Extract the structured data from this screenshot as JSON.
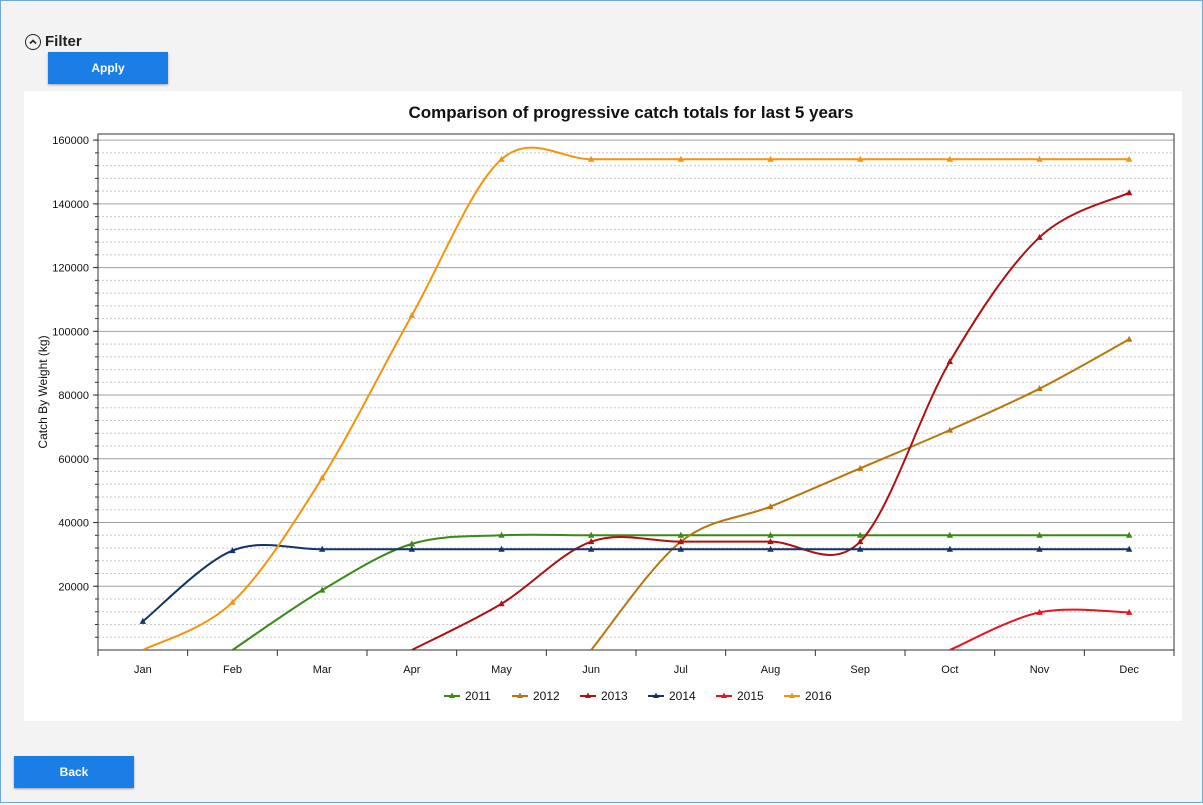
{
  "filter": {
    "label": "Filter",
    "icon": "chevron-up-circle-icon"
  },
  "buttons": {
    "apply": "Apply",
    "back": "Back"
  },
  "colors": {
    "button": "#1a7ee6",
    "window_border": "#6fa8dc"
  },
  "chart_data": {
    "type": "line",
    "title": "Comparison of progressive catch totals for last 5 years",
    "xlabel": "",
    "ylabel": "Catch By Weight (kg)",
    "categories": [
      "Jan",
      "Feb",
      "Mar",
      "Apr",
      "May",
      "Jun",
      "Jul",
      "Aug",
      "Sep",
      "Oct",
      "Nov",
      "Dec"
    ],
    "ylim": [
      0,
      160000
    ],
    "yticks": [
      20000,
      40000,
      60000,
      80000,
      100000,
      120000,
      140000,
      160000
    ],
    "grid": true,
    "legend_position": "bottom-center",
    "marker": "triangle",
    "series": [
      {
        "name": "2011",
        "color": "#3a8a14",
        "values": [
          null,
          0,
          18800,
          33300,
          36000,
          36000,
          36000,
          36000,
          36000,
          36000,
          36000,
          36000
        ]
      },
      {
        "name": "2012",
        "color": "#b8760c",
        "values": [
          null,
          null,
          null,
          null,
          null,
          0,
          34000,
          45000,
          57000,
          69000,
          82000,
          97500
        ]
      },
      {
        "name": "2013",
        "color": "#b01010",
        "values": [
          null,
          null,
          null,
          0,
          14500,
          34000,
          34000,
          34000,
          34000,
          90500,
          129500,
          143500
        ]
      },
      {
        "name": "2014",
        "color": "#14336b",
        "values": [
          9000,
          31200,
          31600,
          31600,
          31600,
          31600,
          31600,
          31600,
          31600,
          31600,
          31600,
          31600
        ]
      },
      {
        "name": "2015",
        "color": "#e8141e",
        "values": [
          null,
          null,
          null,
          null,
          null,
          null,
          null,
          null,
          null,
          0,
          11800,
          11800
        ]
      },
      {
        "name": "2016",
        "color": "#f5940c",
        "values": [
          0,
          15000,
          54000,
          105000,
          154000,
          154000,
          154000,
          154000,
          154000,
          154000,
          154000,
          154000
        ]
      }
    ]
  }
}
